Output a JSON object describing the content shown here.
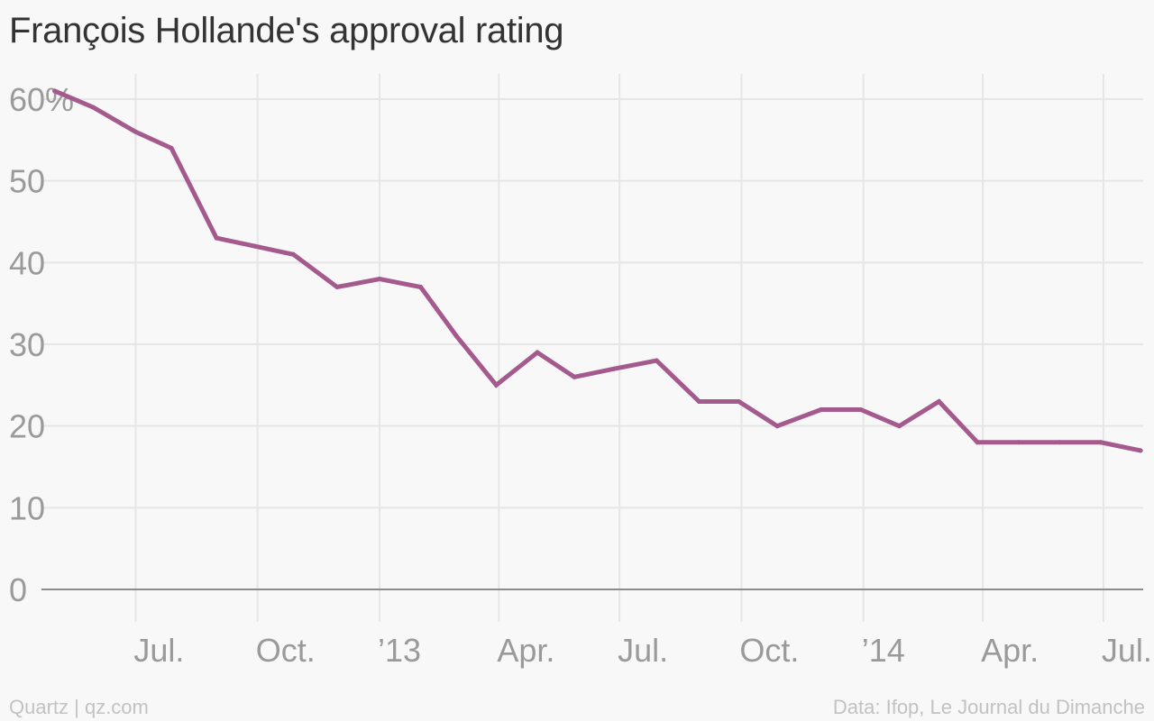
{
  "footer": {
    "credit": "Quartz | qz.com",
    "source": "Data: Ifop, Le Journal du Dimanche"
  },
  "colors": {
    "line": "#a45a8c",
    "background": "#f8f8f8",
    "grid": "#e6e6e6"
  },
  "chart_data": {
    "type": "line",
    "title": "François Hollande's approval rating",
    "xlabel": "",
    "ylabel": "",
    "ylim": [
      0,
      60
    ],
    "xlim": [
      "2012-04-21",
      "2014-07-31"
    ],
    "grid": true,
    "yticks": [
      {
        "value": 60,
        "label": "60%"
      },
      {
        "value": 50,
        "label": "50"
      },
      {
        "value": 40,
        "label": "40"
      },
      {
        "value": 30,
        "label": "30"
      },
      {
        "value": 20,
        "label": "20"
      },
      {
        "value": 10,
        "label": "10"
      },
      {
        "value": 0,
        "label": "0"
      }
    ],
    "xticks": [
      {
        "date": "2012-07-01",
        "label": "Jul."
      },
      {
        "date": "2012-10-01",
        "label": "Oct."
      },
      {
        "date": "2013-01-01",
        "label": "’13"
      },
      {
        "date": "2013-04-01",
        "label": "Apr."
      },
      {
        "date": "2013-07-01",
        "label": "Jul."
      },
      {
        "date": "2013-10-01",
        "label": "Oct."
      },
      {
        "date": "2014-01-01",
        "label": "’14"
      },
      {
        "date": "2014-04-01",
        "label": "Apr."
      },
      {
        "date": "2014-07-01",
        "label": "Jul."
      }
    ],
    "series": [
      {
        "x": [
          "2012-05-01",
          "2012-05-30",
          "2012-07-01",
          "2012-07-28",
          "2012-08-31",
          "2012-09-29",
          "2012-10-28",
          "2012-11-30",
          "2013-01-01",
          "2013-02-01",
          "2013-02-28",
          "2013-03-30",
          "2013-04-30",
          "2013-05-28",
          "2013-06-27",
          "2013-07-29",
          "2013-08-30",
          "2013-09-29",
          "2013-10-28",
          "2013-11-30",
          "2013-12-30",
          "2014-01-28",
          "2014-02-27",
          "2014-03-28",
          "2014-04-28",
          "2014-05-29",
          "2014-06-29",
          "2014-07-29"
        ],
        "values": [
          61,
          59,
          56,
          54,
          43,
          42,
          41,
          37,
          38,
          37,
          31,
          25,
          29,
          26,
          27,
          28,
          23,
          23,
          20,
          22,
          22,
          20,
          23,
          18,
          18,
          18,
          18,
          17
        ]
      }
    ]
  }
}
